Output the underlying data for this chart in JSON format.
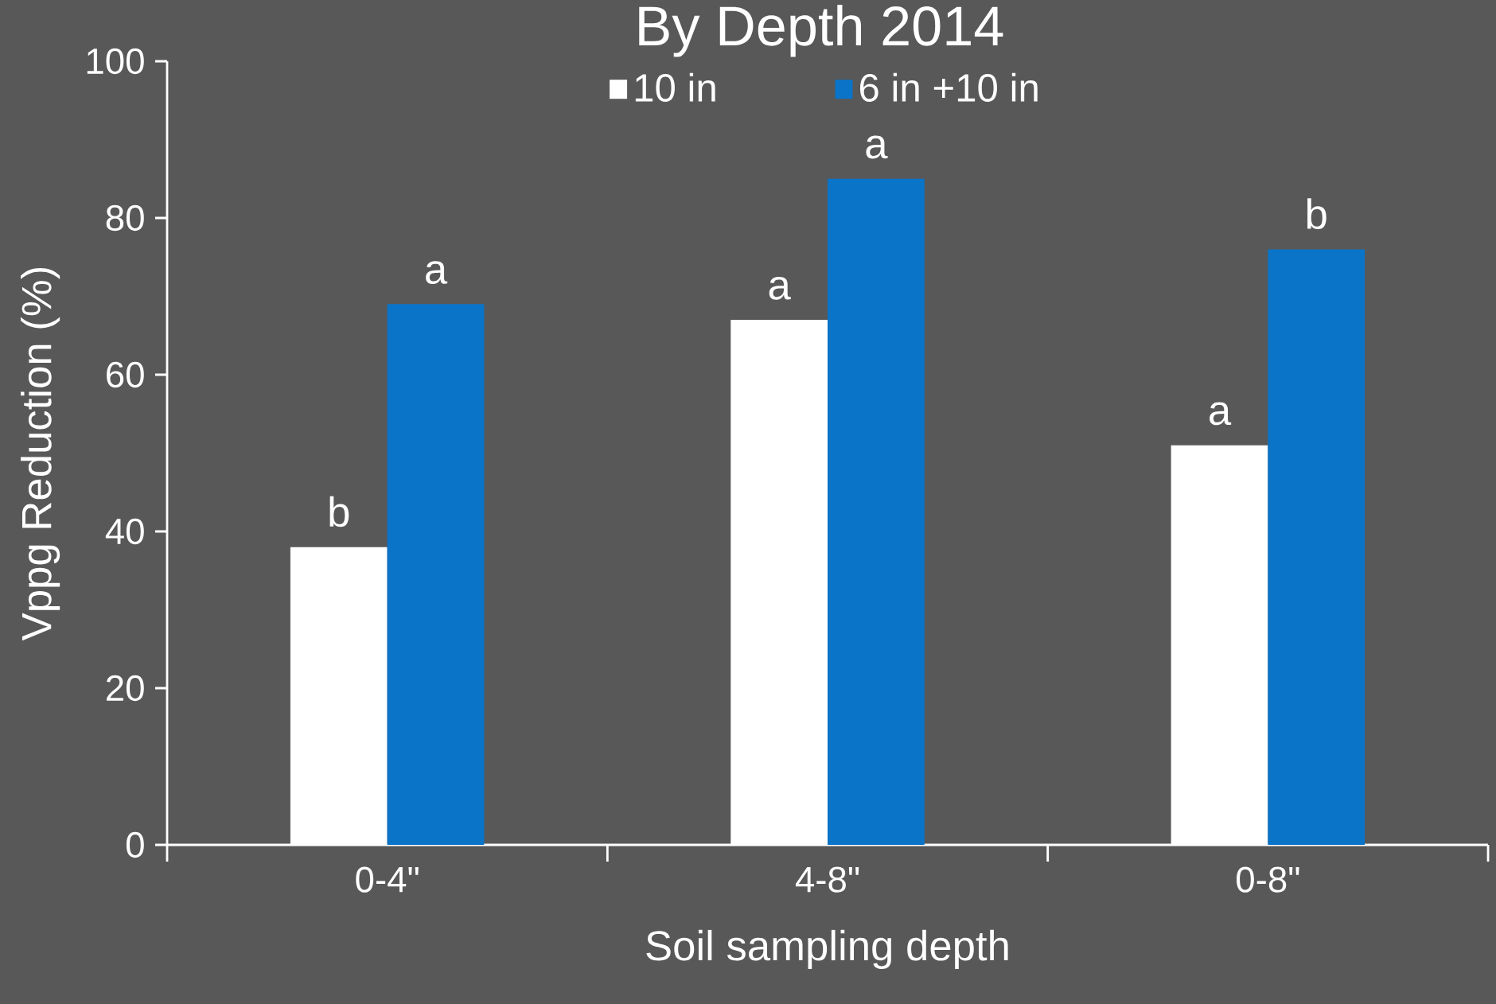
{
  "chart_data": {
    "type": "bar",
    "title": "By Depth 2014",
    "xlabel": "Soil sampling depth",
    "ylabel": "Vppg Reduction (%)",
    "categories": [
      "0-4\"",
      "4-8\"",
      "0-8\""
    ],
    "series": [
      {
        "name": "10 in",
        "color": "#ffffff",
        "values": [
          38,
          67,
          51
        ],
        "value_labels": [
          "b",
          "a",
          "a"
        ]
      },
      {
        "name": "6 in +10 in",
        "color": "#0a74c9",
        "values": [
          69,
          85,
          76
        ],
        "value_labels": [
          "a",
          "a",
          "b"
        ]
      }
    ],
    "ylim": [
      0,
      100
    ],
    "yticks": [
      0,
      20,
      40,
      60,
      80,
      100
    ],
    "grid": false,
    "legend": "top"
  }
}
